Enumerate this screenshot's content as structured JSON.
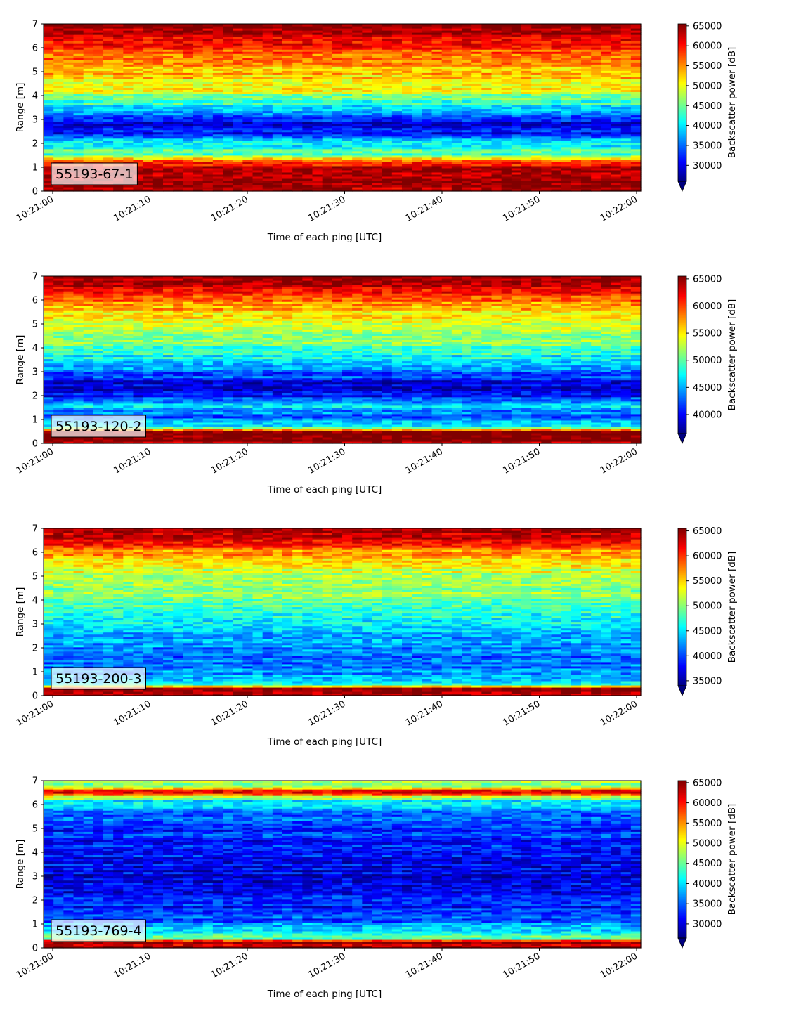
{
  "chart_data": [
    {
      "type": "heatmap",
      "label_box": "55193-67-1",
      "xlabel": "Time of each ping [UTC]",
      "ylabel": "Range [m]",
      "xticks": [
        "10:21:00",
        "10:21:10",
        "10:21:20",
        "10:21:30",
        "10:21:40",
        "10:21:50",
        "10:22:00"
      ],
      "yticks": [
        "0",
        "1",
        "2",
        "3",
        "4",
        "5",
        "6",
        "7"
      ],
      "ylim": [
        0,
        7
      ],
      "colorbar": {
        "label": "Backscatter power [dB]",
        "ticks": [
          "30000",
          "35000",
          "40000",
          "45000",
          "50000",
          "55000",
          "60000",
          "65000"
        ],
        "range": [
          26000,
          65500
        ],
        "colormap": "jet",
        "extend": "min"
      },
      "range_profile": [
        {
          "range_m": 0.1,
          "power": 63500
        },
        {
          "range_m": 0.3,
          "power": 65000
        },
        {
          "range_m": 0.9,
          "power": 64000
        },
        {
          "range_m": 1.2,
          "power": 60000
        },
        {
          "range_m": 1.5,
          "power": 45000
        },
        {
          "range_m": 2.0,
          "power": 41000
        },
        {
          "range_m": 2.4,
          "power": 32000
        },
        {
          "range_m": 2.8,
          "power": 29500
        },
        {
          "range_m": 3.3,
          "power": 37000
        },
        {
          "range_m": 3.8,
          "power": 44000
        },
        {
          "range_m": 4.3,
          "power": 50000
        },
        {
          "range_m": 5.0,
          "power": 53000
        },
        {
          "range_m": 5.6,
          "power": 57000
        },
        {
          "range_m": 6.2,
          "power": 60000
        },
        {
          "range_m": 6.7,
          "power": 64500
        },
        {
          "range_m": 7.0,
          "power": 65000
        }
      ]
    },
    {
      "type": "heatmap",
      "label_box": "55193-120-2",
      "xlabel": "Time of each ping [UTC]",
      "ylabel": "Range [m]",
      "xticks": [
        "10:21:00",
        "10:21:10",
        "10:21:20",
        "10:21:30",
        "10:21:40",
        "10:21:50",
        "10:22:00"
      ],
      "yticks": [
        "0",
        "1",
        "2",
        "3",
        "4",
        "5",
        "6",
        "7"
      ],
      "ylim": [
        0,
        7
      ],
      "colorbar": {
        "label": "Backscatter power [dB]",
        "ticks": [
          "40000",
          "45000",
          "50000",
          "55000",
          "60000",
          "65000"
        ],
        "range": [
          36500,
          65500
        ],
        "colormap": "jet",
        "extend": "min"
      },
      "range_profile": [
        {
          "range_m": 0.1,
          "power": 65000
        },
        {
          "range_m": 0.5,
          "power": 65000
        },
        {
          "range_m": 0.7,
          "power": 48000
        },
        {
          "range_m": 1.1,
          "power": 42000
        },
        {
          "range_m": 1.6,
          "power": 46500
        },
        {
          "range_m": 2.0,
          "power": 40000
        },
        {
          "range_m": 2.5,
          "power": 39500
        },
        {
          "range_m": 3.0,
          "power": 43000
        },
        {
          "range_m": 3.6,
          "power": 47500
        },
        {
          "range_m": 4.2,
          "power": 50500
        },
        {
          "range_m": 5.0,
          "power": 53000
        },
        {
          "range_m": 5.8,
          "power": 57500
        },
        {
          "range_m": 6.3,
          "power": 61000
        },
        {
          "range_m": 6.8,
          "power": 65000
        },
        {
          "range_m": 7.0,
          "power": 65500
        }
      ]
    },
    {
      "type": "heatmap",
      "label_box": "55193-200-3",
      "xlabel": "Time of each ping [UTC]",
      "ylabel": "Range [m]",
      "xticks": [
        "10:21:00",
        "10:21:10",
        "10:21:20",
        "10:21:30",
        "10:21:40",
        "10:21:50",
        "10:22:00"
      ],
      "yticks": [
        "0",
        "1",
        "2",
        "3",
        "4",
        "5",
        "6",
        "7"
      ],
      "ylim": [
        0,
        7
      ],
      "colorbar": {
        "label": "Backscatter power [dB]",
        "ticks": [
          "35000",
          "40000",
          "45000",
          "50000",
          "55000",
          "60000",
          "65000"
        ],
        "range": [
          34000,
          65500
        ],
        "colormap": "jet",
        "extend": "min"
      },
      "range_profile": [
        {
          "range_m": 0.1,
          "power": 64000
        },
        {
          "range_m": 0.3,
          "power": 65000
        },
        {
          "range_m": 0.5,
          "power": 46000
        },
        {
          "range_m": 1.0,
          "power": 42000
        },
        {
          "range_m": 1.5,
          "power": 40500
        },
        {
          "range_m": 2.2,
          "power": 43000
        },
        {
          "range_m": 3.0,
          "power": 45000
        },
        {
          "range_m": 3.8,
          "power": 48500
        },
        {
          "range_m": 4.5,
          "power": 50500
        },
        {
          "range_m": 5.3,
          "power": 52000
        },
        {
          "range_m": 6.0,
          "power": 56500
        },
        {
          "range_m": 6.5,
          "power": 62000
        },
        {
          "range_m": 7.0,
          "power": 65500
        }
      ]
    },
    {
      "type": "heatmap",
      "label_box": "55193-769-4",
      "xlabel": "Time of each ping [UTC]",
      "ylabel": "Range [m]",
      "xticks": [
        "10:21:00",
        "10:21:10",
        "10:21:20",
        "10:21:30",
        "10:21:40",
        "10:21:50",
        "10:22:00"
      ],
      "yticks": [
        "0",
        "1",
        "2",
        "3",
        "4",
        "5",
        "6",
        "7"
      ],
      "ylim": [
        0,
        7
      ],
      "colorbar": {
        "label": "Backscatter power [dB]",
        "ticks": [
          "30000",
          "35000",
          "40000",
          "45000",
          "50000",
          "55000",
          "60000",
          "65000"
        ],
        "range": [
          26500,
          65500
        ],
        "colormap": "jet",
        "extend": "min"
      },
      "range_profile": [
        {
          "range_m": 0.1,
          "power": 63000
        },
        {
          "range_m": 0.25,
          "power": 65000
        },
        {
          "range_m": 0.4,
          "power": 45000
        },
        {
          "range_m": 0.8,
          "power": 39000
        },
        {
          "range_m": 1.2,
          "power": 34000
        },
        {
          "range_m": 2.0,
          "power": 31500
        },
        {
          "range_m": 3.0,
          "power": 30500
        },
        {
          "range_m": 4.0,
          "power": 31500
        },
        {
          "range_m": 5.0,
          "power": 33000
        },
        {
          "range_m": 5.8,
          "power": 36000
        },
        {
          "range_m": 6.2,
          "power": 42000
        },
        {
          "range_m": 6.55,
          "power": 64000
        },
        {
          "range_m": 6.75,
          "power": 47000
        },
        {
          "range_m": 7.0,
          "power": 46000
        }
      ]
    }
  ]
}
